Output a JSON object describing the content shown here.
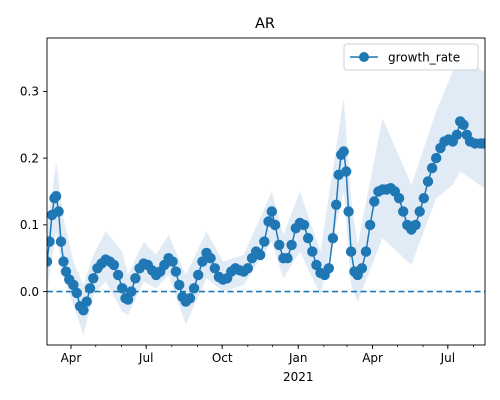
{
  "chart_data": {
    "type": "line",
    "title": "AR",
    "xlabel": "",
    "ylabel": "",
    "x_axis": {
      "ticks": [
        {
          "date": "2020-04-01",
          "label": "Apr"
        },
        {
          "date": "2020-07-01",
          "label": "Jul"
        },
        {
          "date": "2020-10-01",
          "label": "Oct"
        },
        {
          "date": "2021-01-01",
          "label": "Jan",
          "sublabel": "2021"
        },
        {
          "date": "2021-04-01",
          "label": "Apr"
        },
        {
          "date": "2021-07-01",
          "label": "Jul"
        }
      ],
      "range": [
        "2020-03-03",
        "2021-08-15"
      ]
    },
    "y_axis": {
      "ticks": [
        0.0,
        0.1,
        0.2,
        0.3
      ],
      "tick_labels": [
        "0.0",
        "0.1",
        "0.2",
        "0.3"
      ],
      "range": [
        -0.08,
        0.38
      ]
    },
    "legend": {
      "position": "top-right",
      "entries": [
        "growth_rate"
      ]
    },
    "reference_line": {
      "y": 0.0,
      "style": "dashed"
    },
    "colors": {
      "series": "#1f77b4",
      "band": "#dce8f5"
    },
    "series": [
      {
        "name": "growth_rate",
        "marker": "circle",
        "points": [
          [
            "2020-03-03",
            0.045
          ],
          [
            "2020-03-06",
            0.075
          ],
          [
            "2020-03-09",
            0.115
          ],
          [
            "2020-03-12",
            0.14
          ],
          [
            "2020-03-14",
            0.143
          ],
          [
            "2020-03-17",
            0.12
          ],
          [
            "2020-03-20",
            0.075
          ],
          [
            "2020-03-23",
            0.045
          ],
          [
            "2020-03-26",
            0.03
          ],
          [
            "2020-03-30",
            0.018
          ],
          [
            "2020-04-04",
            0.01
          ],
          [
            "2020-04-08",
            -0.002
          ],
          [
            "2020-04-12",
            -0.022
          ],
          [
            "2020-04-16",
            -0.028
          ],
          [
            "2020-04-20",
            -0.015
          ],
          [
            "2020-04-24",
            0.005
          ],
          [
            "2020-04-28",
            0.02
          ],
          [
            "2020-05-03",
            0.035
          ],
          [
            "2020-05-08",
            0.042
          ],
          [
            "2020-05-13",
            0.048
          ],
          [
            "2020-05-18",
            0.045
          ],
          [
            "2020-05-23",
            0.04
          ],
          [
            "2020-05-28",
            0.025
          ],
          [
            "2020-06-02",
            0.005
          ],
          [
            "2020-06-06",
            -0.01
          ],
          [
            "2020-06-09",
            -0.012
          ],
          [
            "2020-06-13",
            0.0
          ],
          [
            "2020-06-18",
            0.02
          ],
          [
            "2020-06-23",
            0.035
          ],
          [
            "2020-06-28",
            0.042
          ],
          [
            "2020-07-03",
            0.04
          ],
          [
            "2020-07-08",
            0.032
          ],
          [
            "2020-07-13",
            0.025
          ],
          [
            "2020-07-18",
            0.03
          ],
          [
            "2020-07-23",
            0.04
          ],
          [
            "2020-07-28",
            0.05
          ],
          [
            "2020-08-02",
            0.045
          ],
          [
            "2020-08-06",
            0.03
          ],
          [
            "2020-08-10",
            0.01
          ],
          [
            "2020-08-14",
            -0.008
          ],
          [
            "2020-08-18",
            -0.015
          ],
          [
            "2020-08-23",
            -0.01
          ],
          [
            "2020-08-28",
            0.005
          ],
          [
            "2020-09-02",
            0.025
          ],
          [
            "2020-09-07",
            0.045
          ],
          [
            "2020-09-12",
            0.058
          ],
          [
            "2020-09-17",
            0.05
          ],
          [
            "2020-09-22",
            0.035
          ],
          [
            "2020-09-27",
            0.022
          ],
          [
            "2020-10-02",
            0.018
          ],
          [
            "2020-10-07",
            0.02
          ],
          [
            "2020-10-12",
            0.03
          ],
          [
            "2020-10-17",
            0.035
          ],
          [
            "2020-10-22",
            0.032
          ],
          [
            "2020-10-27",
            0.03
          ],
          [
            "2020-11-01",
            0.035
          ],
          [
            "2020-11-06",
            0.05
          ],
          [
            "2020-11-11",
            0.06
          ],
          [
            "2020-11-16",
            0.055
          ],
          [
            "2020-11-21",
            0.075
          ],
          [
            "2020-11-26",
            0.105
          ],
          [
            "2020-11-30",
            0.12
          ],
          [
            "2020-12-04",
            0.1
          ],
          [
            "2020-12-09",
            0.07
          ],
          [
            "2020-12-14",
            0.05
          ],
          [
            "2020-12-19",
            0.05
          ],
          [
            "2020-12-24",
            0.07
          ],
          [
            "2020-12-29",
            0.095
          ],
          [
            "2021-01-03",
            0.103
          ],
          [
            "2021-01-08",
            0.1
          ],
          [
            "2021-01-13",
            0.08
          ],
          [
            "2021-01-18",
            0.06
          ],
          [
            "2021-01-23",
            0.04
          ],
          [
            "2021-01-28",
            0.028
          ],
          [
            "2021-02-02",
            0.025
          ],
          [
            "2021-02-07",
            0.035
          ],
          [
            "2021-02-12",
            0.08
          ],
          [
            "2021-02-16",
            0.13
          ],
          [
            "2021-02-19",
            0.175
          ],
          [
            "2021-02-22",
            0.205
          ],
          [
            "2021-02-25",
            0.21
          ],
          [
            "2021-02-28",
            0.18
          ],
          [
            "2021-03-03",
            0.12
          ],
          [
            "2021-03-06",
            0.06
          ],
          [
            "2021-03-10",
            0.03
          ],
          [
            "2021-03-14",
            0.025
          ],
          [
            "2021-03-19",
            0.035
          ],
          [
            "2021-03-24",
            0.06
          ],
          [
            "2021-03-29",
            0.1
          ],
          [
            "2021-04-03",
            0.135
          ],
          [
            "2021-04-08",
            0.15
          ],
          [
            "2021-04-13",
            0.153
          ],
          [
            "2021-04-18",
            0.153
          ],
          [
            "2021-04-23",
            0.155
          ],
          [
            "2021-04-28",
            0.15
          ],
          [
            "2021-05-03",
            0.14
          ],
          [
            "2021-05-08",
            0.12
          ],
          [
            "2021-05-13",
            0.1
          ],
          [
            "2021-05-18",
            0.093
          ],
          [
            "2021-05-23",
            0.1
          ],
          [
            "2021-05-28",
            0.12
          ],
          [
            "2021-06-02",
            0.14
          ],
          [
            "2021-06-07",
            0.165
          ],
          [
            "2021-06-12",
            0.185
          ],
          [
            "2021-06-17",
            0.2
          ],
          [
            "2021-06-22",
            0.215
          ],
          [
            "2021-06-27",
            0.225
          ],
          [
            "2021-07-02",
            0.228
          ],
          [
            "2021-07-07",
            0.225
          ],
          [
            "2021-07-12",
            0.235
          ],
          [
            "2021-07-16",
            0.255
          ],
          [
            "2021-07-20",
            0.25
          ],
          [
            "2021-07-24",
            0.235
          ],
          [
            "2021-07-28",
            0.225
          ],
          [
            "2021-08-03",
            0.222
          ],
          [
            "2021-08-10",
            0.222
          ],
          [
            "2021-08-14",
            0.222
          ]
        ]
      }
    ],
    "band": {
      "points": [
        [
          "2020-03-03",
          0.0,
          0.09
        ],
        [
          "2020-03-14",
          0.09,
          0.195
        ],
        [
          "2020-03-23",
          0.02,
          0.11
        ],
        [
          "2020-04-04",
          -0.02,
          0.045
        ],
        [
          "2020-04-16",
          -0.065,
          0.01
        ],
        [
          "2020-04-28",
          -0.005,
          0.055
        ],
        [
          "2020-05-13",
          0.015,
          0.09
        ],
        [
          "2020-06-02",
          -0.03,
          0.06
        ],
        [
          "2020-06-09",
          -0.035,
          0.025
        ],
        [
          "2020-06-28",
          0.015,
          0.075
        ],
        [
          "2020-07-13",
          0.005,
          0.055
        ],
        [
          "2020-07-28",
          0.025,
          0.085
        ],
        [
          "2020-08-18",
          -0.05,
          0.025
        ],
        [
          "2020-09-12",
          0.02,
          0.09
        ],
        [
          "2020-10-02",
          0.0,
          0.045
        ],
        [
          "2020-10-27",
          0.01,
          0.055
        ],
        [
          "2020-11-30",
          0.075,
          0.15
        ],
        [
          "2020-12-14",
          0.02,
          0.085
        ],
        [
          "2021-01-03",
          0.06,
          0.15
        ],
        [
          "2021-01-28",
          -0.005,
          0.06
        ],
        [
          "2021-02-25",
          0.15,
          0.29
        ],
        [
          "2021-03-06",
          0.01,
          0.14
        ],
        [
          "2021-03-14",
          -0.015,
          0.07
        ],
        [
          "2021-04-13",
          0.08,
          0.26
        ],
        [
          "2021-05-18",
          0.04,
          0.16
        ],
        [
          "2021-06-17",
          0.14,
          0.27
        ],
        [
          "2021-07-07",
          0.16,
          0.33
        ],
        [
          "2021-07-16",
          0.18,
          0.35
        ],
        [
          "2021-08-14",
          0.155,
          0.33
        ]
      ]
    }
  }
}
